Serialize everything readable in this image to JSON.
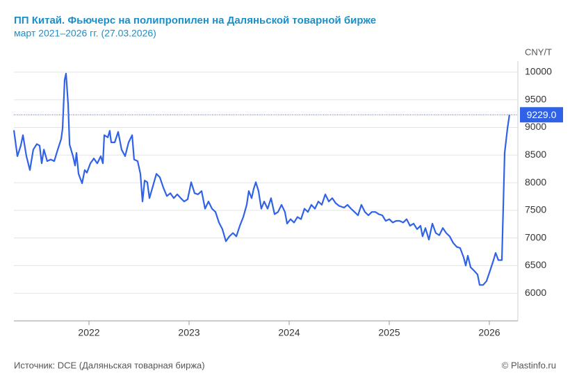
{
  "chart_data": {
    "type": "line",
    "title": "ПП Китай. Фьючерс на полипропилен на Даляньской товарной бирже",
    "subtitle": "март 2021–2026 гг. (27.03.2026)",
    "y_unit": "CNY/T",
    "source": "Источник: DCE (Даляньская товарная биржа)",
    "credit": "© Plastinfo.ru",
    "xlim": [
      2021.25,
      2026.285
    ],
    "xticks": [
      2022,
      2023,
      2024,
      2025,
      2026
    ],
    "ylim": [
      5500,
      10200
    ],
    "yticks": [
      6000,
      6500,
      7000,
      7500,
      8000,
      8500,
      9000,
      9500,
      10000
    ],
    "grid": true,
    "last_value": {
      "value": 9229,
      "label": "9229.0"
    },
    "series": [
      {
        "color": "#2f62e6",
        "x": [
          2021.25,
          2021.285,
          2021.319,
          2021.34,
          2021.375,
          2021.41,
          2021.444,
          2021.479,
          2021.507,
          2021.528,
          2021.549,
          2021.583,
          2021.618,
          2021.653,
          2021.688,
          2021.722,
          2021.736,
          2021.757,
          2021.771,
          2021.792,
          2021.806,
          2021.84,
          2021.861,
          2021.875,
          2021.896,
          2021.931,
          2021.958,
          2021.979,
          2022.014,
          2022.049,
          2022.083,
          2022.118,
          2022.139,
          2022.153,
          2022.188,
          2022.208,
          2022.222,
          2022.257,
          2022.292,
          2022.326,
          2022.361,
          2022.396,
          2022.431,
          2022.451,
          2022.486,
          2022.514,
          2022.535,
          2022.556,
          2022.583,
          2022.604,
          2022.639,
          2022.674,
          2022.708,
          2022.743,
          2022.778,
          2022.813,
          2022.847,
          2022.882,
          2022.917,
          2022.951,
          2022.986,
          2023.021,
          2023.056,
          2023.09,
          2023.125,
          2023.16,
          2023.194,
          2023.229,
          2023.264,
          2023.299,
          2023.333,
          2023.368,
          2023.403,
          2023.438,
          2023.472,
          2023.507,
          2023.542,
          2023.576,
          2023.597,
          2023.625,
          2023.646,
          2023.667,
          2023.694,
          2023.722,
          2023.75,
          2023.785,
          2023.819,
          2023.854,
          2023.889,
          2023.924,
          2023.958,
          2023.979,
          2024.014,
          2024.049,
          2024.083,
          2024.118,
          2024.153,
          2024.188,
          2024.222,
          2024.257,
          2024.292,
          2024.326,
          2024.361,
          2024.396,
          2024.431,
          2024.465,
          2024.5,
          2024.549,
          2024.583,
          2024.618,
          2024.653,
          2024.688,
          2024.722,
          2024.757,
          2024.792,
          2024.826,
          2024.861,
          2024.896,
          2024.931,
          2024.965,
          2025.0,
          2025.035,
          2025.069,
          2025.104,
          2025.139,
          2025.174,
          2025.208,
          2025.243,
          2025.278,
          2025.313,
          2025.333,
          2025.361,
          2025.396,
          2025.431,
          2025.465,
          2025.5,
          2025.535,
          2025.569,
          2025.604,
          2025.639,
          2025.674,
          2025.708,
          2025.743,
          2025.764,
          2025.785,
          2025.813,
          2025.847,
          2025.882,
          2025.903,
          2025.938,
          2025.972,
          2026.007,
          2026.042,
          2026.063,
          2026.09,
          2026.125,
          2026.153,
          2026.181,
          2026.201
        ],
        "values": [
          8950,
          8480,
          8670,
          8860,
          8480,
          8230,
          8600,
          8700,
          8670,
          8350,
          8600,
          8390,
          8420,
          8390,
          8600,
          8790,
          8980,
          9860,
          9975,
          9420,
          8690,
          8480,
          8310,
          8540,
          8160,
          7990,
          8230,
          8180,
          8350,
          8440,
          8350,
          8480,
          8350,
          8860,
          8820,
          8940,
          8730,
          8730,
          8920,
          8600,
          8480,
          8730,
          8860,
          8420,
          8390,
          8160,
          7660,
          8040,
          8010,
          7720,
          7940,
          8160,
          8100,
          7910,
          7760,
          7810,
          7720,
          7790,
          7720,
          7660,
          7700,
          8010,
          7810,
          7790,
          7850,
          7530,
          7660,
          7530,
          7470,
          7280,
          7160,
          6940,
          7030,
          7090,
          7030,
          7220,
          7380,
          7600,
          7850,
          7720,
          7890,
          8010,
          7850,
          7530,
          7660,
          7530,
          7720,
          7430,
          7470,
          7600,
          7470,
          7260,
          7340,
          7280,
          7380,
          7340,
          7530,
          7470,
          7600,
          7530,
          7660,
          7600,
          7790,
          7660,
          7720,
          7630,
          7580,
          7550,
          7600,
          7530,
          7470,
          7410,
          7600,
          7470,
          7410,
          7470,
          7470,
          7430,
          7410,
          7310,
          7340,
          7280,
          7310,
          7310,
          7280,
          7340,
          7220,
          7260,
          7160,
          7220,
          7030,
          7180,
          6970,
          7260,
          7090,
          7050,
          7180,
          7090,
          7030,
          6910,
          6840,
          6820,
          6650,
          6500,
          6680,
          6470,
          6410,
          6340,
          6150,
          6150,
          6220,
          6410,
          6600,
          6730,
          6600,
          6600,
          8540,
          8980,
          9229
        ]
      }
    ]
  }
}
